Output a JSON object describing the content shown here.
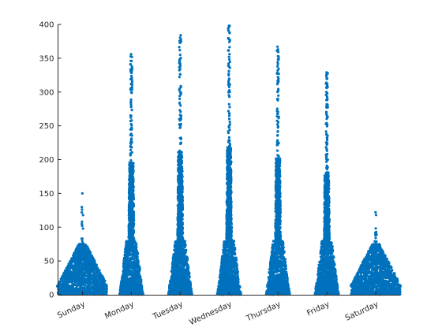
{
  "chart_data": {
    "type": "scatter",
    "title": "",
    "xlabel": "",
    "ylabel": "",
    "categories": [
      "Sunday",
      "Monday",
      "Tuesday",
      "Wednesday",
      "Thursday",
      "Friday",
      "Saturday"
    ],
    "ylim": [
      0,
      400
    ],
    "yticks": [
      0,
      50,
      100,
      150,
      200,
      250,
      300,
      350,
      400
    ],
    "color": "#0072BD",
    "grid": false,
    "legend": "none",
    "series": [
      {
        "category": "Sunday",
        "max": 150,
        "highlights": [
          150,
          126,
          108,
          102,
          98
        ]
      },
      {
        "category": "Monday",
        "max": 356,
        "highlights": [
          356,
          352,
          338,
          330,
          318,
          300,
          280,
          262,
          245,
          231
        ]
      },
      {
        "category": "Tuesday",
        "max": 384,
        "highlights": [
          384,
          362,
          355,
          338,
          326,
          305,
          298,
          280,
          266,
          250
        ]
      },
      {
        "category": "Wednesday",
        "max": 398,
        "highlights": [
          398,
          378,
          356,
          352,
          338,
          331,
          318,
          300,
          282,
          260
        ]
      },
      {
        "category": "Thursday",
        "max": 367,
        "highlights": [
          367,
          348,
          344,
          338,
          320,
          302,
          290,
          268,
          252,
          236
        ]
      },
      {
        "category": "Friday",
        "max": 329,
        "highlights": [
          329,
          310,
          306,
          298,
          288,
          270,
          254,
          238,
          222,
          205
        ]
      },
      {
        "category": "Saturday",
        "max": 122,
        "highlights": [
          122,
          118,
          93,
          88,
          84
        ]
      }
    ]
  }
}
